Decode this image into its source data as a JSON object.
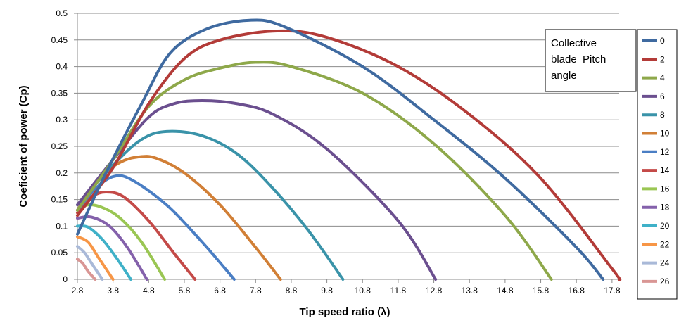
{
  "chart_data": {
    "type": "line",
    "title": "",
    "xlabel": "Tip speed ratio (λ)",
    "ylabel": "Coeficient of power (Cp)",
    "xlim": [
      2.8,
      18.0
    ],
    "ylim": [
      0,
      0.5
    ],
    "x_ticks": [
      "2.8",
      "3.8",
      "4.8",
      "5.8",
      "6.8",
      "7.8",
      "8.8",
      "9.8",
      "10.8",
      "11.8",
      "12.8",
      "13.8",
      "14.8",
      "15.8",
      "16.8",
      "17.8"
    ],
    "y_ticks": [
      "0",
      "0.05",
      "0.1",
      "0.15",
      "0.2",
      "0.25",
      "0.3",
      "0.35",
      "0.4",
      "0.45",
      "0.5"
    ],
    "grid": "horizontal",
    "legend_position": "right",
    "annotation": [
      "Collective",
      "blade  Pitch",
      "angle"
    ],
    "series": [
      {
        "name": "0",
        "color": "#3f6aa0",
        "x": [
          2.8,
          3.6,
          4.6,
          5.4,
          6.4,
          7.6,
          8.6,
          10.8,
          12.8,
          14.8,
          16.8,
          17.55
        ],
        "y": [
          0.085,
          0.2,
          0.33,
          0.425,
          0.47,
          0.487,
          0.475,
          0.4,
          0.3,
          0.19,
          0.06,
          0
        ]
      },
      {
        "name": "2",
        "color": "#b33b38",
        "x": [
          2.8,
          3.8,
          4.8,
          5.8,
          6.8,
          8.4,
          9.8,
          11.8,
          13.8,
          15.8,
          17.8,
          18.0
        ],
        "y": [
          0.12,
          0.21,
          0.33,
          0.415,
          0.45,
          0.467,
          0.455,
          0.4,
          0.31,
          0.19,
          0.02,
          0
        ]
      },
      {
        "name": "4",
        "color": "#8ea84a",
        "x": [
          2.8,
          3.8,
          4.8,
          5.8,
          6.8,
          7.8,
          8.8,
          10.8,
          12.8,
          14.8,
          16.1
        ],
        "y": [
          0.13,
          0.225,
          0.325,
          0.375,
          0.397,
          0.408,
          0.4,
          0.35,
          0.255,
          0.12,
          0
        ]
      },
      {
        "name": "6",
        "color": "#6b4f8f",
        "x": [
          2.8,
          3.8,
          4.8,
          5.5,
          6.3,
          7.3,
          8.3,
          9.8,
          11.8,
          12.85
        ],
        "y": [
          0.14,
          0.225,
          0.305,
          0.33,
          0.336,
          0.33,
          0.31,
          0.245,
          0.11,
          0
        ]
      },
      {
        "name": "8",
        "color": "#3a93a9",
        "x": [
          2.8,
          3.8,
          4.6,
          5.3,
          6.3,
          7.3,
          8.3,
          9.3,
          10.25
        ],
        "y": [
          0.14,
          0.215,
          0.263,
          0.278,
          0.27,
          0.235,
          0.17,
          0.09,
          0
        ]
      },
      {
        "name": "10",
        "color": "#d17f36",
        "x": [
          2.8,
          3.4,
          4.0,
          4.5,
          5.0,
          5.8,
          6.8,
          7.8,
          8.5
        ],
        "y": [
          0.13,
          0.19,
          0.22,
          0.23,
          0.228,
          0.2,
          0.14,
          0.06,
          0
        ]
      },
      {
        "name": "12",
        "color": "#4a7ec4",
        "x": [
          2.8,
          3.3,
          3.8,
          4.3,
          5.3,
          6.3,
          7.2
        ],
        "y": [
          0.13,
          0.17,
          0.193,
          0.188,
          0.14,
          0.07,
          0
        ]
      },
      {
        "name": "14",
        "color": "#c44a48",
        "x": [
          2.8,
          3.2,
          3.6,
          4.1,
          4.8,
          5.5,
          6.1
        ],
        "y": [
          0.125,
          0.155,
          0.164,
          0.155,
          0.11,
          0.05,
          0
        ]
      },
      {
        "name": "16",
        "color": "#9ac653",
        "x": [
          2.8,
          3.1,
          3.5,
          4.0,
          4.6,
          5.25
        ],
        "y": [
          0.13,
          0.14,
          0.135,
          0.115,
          0.07,
          0
        ]
      },
      {
        "name": "18",
        "color": "#8461ab",
        "x": [
          2.8,
          3.2,
          3.7,
          4.2,
          4.75
        ],
        "y": [
          0.115,
          0.117,
          0.1,
          0.06,
          0
        ]
      },
      {
        "name": "20",
        "color": "#3fb1c8",
        "x": [
          2.8,
          3.1,
          3.5,
          3.9,
          4.3
        ],
        "y": [
          0.1,
          0.098,
          0.075,
          0.04,
          0
        ]
      },
      {
        "name": "22",
        "color": "#f79646",
        "x": [
          2.8,
          3.1,
          3.4,
          3.8
        ],
        "y": [
          0.08,
          0.07,
          0.04,
          0
        ]
      },
      {
        "name": "24",
        "color": "#a9b9d8",
        "x": [
          2.8,
          3.0,
          3.2,
          3.5
        ],
        "y": [
          0.062,
          0.05,
          0.03,
          0
        ]
      },
      {
        "name": "26",
        "color": "#d99694",
        "x": [
          2.8,
          2.95,
          3.1,
          3.3
        ],
        "y": [
          0.038,
          0.03,
          0.015,
          0
        ]
      }
    ]
  }
}
